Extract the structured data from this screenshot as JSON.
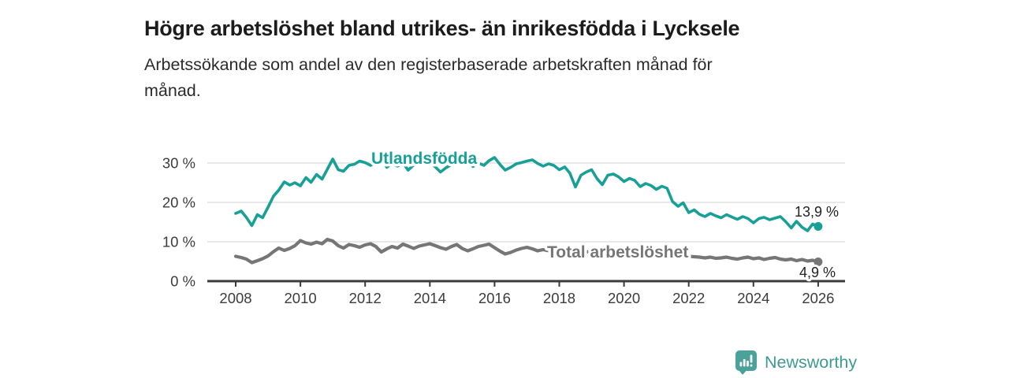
{
  "header": {
    "title": "Högre arbetslöshet bland utrikes- än inrikesfödda i Lycksele",
    "subtitle_line1": "Arbetssökande som andel av den registerbaserade arbetskraften månad för",
    "subtitle_line2": "månad."
  },
  "chart_data": {
    "type": "line",
    "title": "Högre arbetslöshet bland utrikes- än inrikesfödda i Lycksele",
    "xlabel": "",
    "ylabel": "Arbetssökande som andel av den registerbaserade arbetskraften (%)",
    "unit": "%",
    "xlim": [
      2008,
      2026
    ],
    "ylim": [
      0,
      35
    ],
    "grid": true,
    "legend_position": "inline",
    "x_ticks": [
      2008,
      2010,
      2012,
      2014,
      2016,
      2018,
      2020,
      2022,
      2024,
      2026
    ],
    "y_ticks": [
      0,
      10,
      20,
      30
    ],
    "y_tick_suffix": " %",
    "grid_color": "#d9d9d9",
    "axis_color": "#3b3b3b",
    "series": [
      {
        "name": "Utlandsfödda",
        "color": "#18A096",
        "end_label": "13,9 %",
        "end_value": 13.9,
        "points": [
          [
            2008.0,
            17.2
          ],
          [
            2008.17,
            17.8
          ],
          [
            2008.33,
            16.2
          ],
          [
            2008.5,
            14.1
          ],
          [
            2008.67,
            16.9
          ],
          [
            2008.83,
            16.1
          ],
          [
            2009.0,
            18.8
          ],
          [
            2009.17,
            21.6
          ],
          [
            2009.33,
            23.1
          ],
          [
            2009.5,
            25.2
          ],
          [
            2009.67,
            24.4
          ],
          [
            2009.83,
            25.0
          ],
          [
            2010.0,
            24.2
          ],
          [
            2010.17,
            26.3
          ],
          [
            2010.33,
            25.1
          ],
          [
            2010.5,
            27.1
          ],
          [
            2010.67,
            25.9
          ],
          [
            2010.83,
            28.4
          ],
          [
            2011.0,
            31.0
          ],
          [
            2011.17,
            28.3
          ],
          [
            2011.33,
            27.9
          ],
          [
            2011.5,
            29.4
          ],
          [
            2011.67,
            29.7
          ],
          [
            2011.83,
            30.5
          ],
          [
            2012.0,
            30.1
          ],
          [
            2012.17,
            29.4
          ],
          [
            2012.33,
            30.2
          ],
          [
            2012.5,
            31.4
          ],
          [
            2012.67,
            28.9
          ],
          [
            2012.83,
            29.8
          ],
          [
            2013.0,
            29.2
          ],
          [
            2013.17,
            30.0
          ],
          [
            2013.33,
            28.2
          ],
          [
            2013.5,
            29.5
          ],
          [
            2013.67,
            30.3
          ],
          [
            2013.83,
            29.7
          ],
          [
            2014.0,
            30.1
          ],
          [
            2014.17,
            29.0
          ],
          [
            2014.33,
            27.7
          ],
          [
            2014.5,
            28.8
          ],
          [
            2014.67,
            29.6
          ],
          [
            2014.83,
            30.2
          ],
          [
            2015.0,
            29.5
          ],
          [
            2015.17,
            30.4
          ],
          [
            2015.33,
            29.1
          ],
          [
            2015.5,
            30.0
          ],
          [
            2015.67,
            29.4
          ],
          [
            2015.83,
            30.6
          ],
          [
            2016.0,
            31.4
          ],
          [
            2016.17,
            29.6
          ],
          [
            2016.33,
            28.2
          ],
          [
            2016.5,
            28.9
          ],
          [
            2016.67,
            29.8
          ],
          [
            2016.83,
            30.1
          ],
          [
            2017.0,
            30.5
          ],
          [
            2017.17,
            30.8
          ],
          [
            2017.33,
            29.9
          ],
          [
            2017.5,
            29.2
          ],
          [
            2017.67,
            29.8
          ],
          [
            2017.83,
            29.4
          ],
          [
            2018.0,
            28.3
          ],
          [
            2018.17,
            29.0
          ],
          [
            2018.33,
            27.4
          ],
          [
            2018.5,
            23.9
          ],
          [
            2018.67,
            26.9
          ],
          [
            2018.83,
            27.7
          ],
          [
            2019.0,
            28.3
          ],
          [
            2019.17,
            26.0
          ],
          [
            2019.33,
            24.5
          ],
          [
            2019.5,
            26.9
          ],
          [
            2019.67,
            27.2
          ],
          [
            2019.83,
            26.5
          ],
          [
            2020.0,
            25.3
          ],
          [
            2020.17,
            26.1
          ],
          [
            2020.33,
            25.6
          ],
          [
            2020.5,
            24.0
          ],
          [
            2020.67,
            24.8
          ],
          [
            2020.83,
            24.3
          ],
          [
            2021.0,
            23.3
          ],
          [
            2021.17,
            24.1
          ],
          [
            2021.33,
            23.6
          ],
          [
            2021.5,
            20.2
          ],
          [
            2021.67,
            19.0
          ],
          [
            2021.83,
            19.9
          ],
          [
            2022.0,
            17.4
          ],
          [
            2022.17,
            18.1
          ],
          [
            2022.33,
            17.0
          ],
          [
            2022.5,
            16.4
          ],
          [
            2022.67,
            17.2
          ],
          [
            2022.83,
            16.6
          ],
          [
            2023.0,
            16.1
          ],
          [
            2023.17,
            16.9
          ],
          [
            2023.33,
            16.3
          ],
          [
            2023.5,
            15.7
          ],
          [
            2023.67,
            16.4
          ],
          [
            2023.83,
            15.9
          ],
          [
            2024.0,
            14.8
          ],
          [
            2024.17,
            15.9
          ],
          [
            2024.33,
            16.2
          ],
          [
            2024.5,
            15.6
          ],
          [
            2024.67,
            16.0
          ],
          [
            2024.83,
            16.4
          ],
          [
            2025.0,
            15.1
          ],
          [
            2025.17,
            13.5
          ],
          [
            2025.33,
            15.2
          ],
          [
            2025.5,
            13.7
          ],
          [
            2025.67,
            12.8
          ],
          [
            2025.83,
            14.5
          ],
          [
            2026.0,
            13.9
          ]
        ]
      },
      {
        "name": "Total arbetslöshet",
        "color": "#767676",
        "end_label": "4,9 %",
        "end_value": 4.9,
        "points": [
          [
            2008.0,
            6.3
          ],
          [
            2008.17,
            6.0
          ],
          [
            2008.33,
            5.6
          ],
          [
            2008.5,
            4.7
          ],
          [
            2008.67,
            5.2
          ],
          [
            2008.83,
            5.7
          ],
          [
            2009.0,
            6.4
          ],
          [
            2009.17,
            7.5
          ],
          [
            2009.33,
            8.4
          ],
          [
            2009.5,
            7.8
          ],
          [
            2009.67,
            8.3
          ],
          [
            2009.83,
            9.0
          ],
          [
            2010.0,
            10.3
          ],
          [
            2010.17,
            9.7
          ],
          [
            2010.33,
            9.4
          ],
          [
            2010.5,
            9.9
          ],
          [
            2010.67,
            9.5
          ],
          [
            2010.83,
            10.6
          ],
          [
            2011.0,
            10.2
          ],
          [
            2011.17,
            9.0
          ],
          [
            2011.33,
            8.4
          ],
          [
            2011.5,
            9.3
          ],
          [
            2011.67,
            9.0
          ],
          [
            2011.83,
            8.6
          ],
          [
            2012.0,
            9.2
          ],
          [
            2012.17,
            9.5
          ],
          [
            2012.33,
            8.8
          ],
          [
            2012.5,
            7.4
          ],
          [
            2012.67,
            8.2
          ],
          [
            2012.83,
            8.8
          ],
          [
            2013.0,
            8.4
          ],
          [
            2013.17,
            9.4
          ],
          [
            2013.33,
            8.9
          ],
          [
            2013.5,
            8.3
          ],
          [
            2013.67,
            8.9
          ],
          [
            2013.83,
            9.2
          ],
          [
            2014.0,
            9.5
          ],
          [
            2014.17,
            9.0
          ],
          [
            2014.33,
            8.5
          ],
          [
            2014.5,
            8.1
          ],
          [
            2014.67,
            8.8
          ],
          [
            2014.83,
            9.3
          ],
          [
            2015.0,
            8.3
          ],
          [
            2015.17,
            7.7
          ],
          [
            2015.33,
            8.2
          ],
          [
            2015.5,
            8.8
          ],
          [
            2015.67,
            9.1
          ],
          [
            2015.83,
            9.4
          ],
          [
            2016.0,
            8.5
          ],
          [
            2016.17,
            7.6
          ],
          [
            2016.33,
            6.9
          ],
          [
            2016.5,
            7.3
          ],
          [
            2016.67,
            7.9
          ],
          [
            2016.83,
            8.3
          ],
          [
            2017.0,
            8.6
          ],
          [
            2017.17,
            8.2
          ],
          [
            2017.33,
            7.7
          ],
          [
            2017.5,
            8.0
          ],
          [
            2017.67,
            7.7
          ],
          [
            2017.83,
            7.9
          ],
          [
            2018.0,
            7.6
          ],
          [
            2018.17,
            7.4
          ],
          [
            2018.33,
            7.1
          ],
          [
            2018.5,
            6.9
          ],
          [
            2018.67,
            7.2
          ],
          [
            2018.83,
            7.4
          ],
          [
            2019.0,
            7.5
          ],
          [
            2019.17,
            7.2
          ],
          [
            2019.33,
            7.0
          ],
          [
            2019.5,
            6.8
          ],
          [
            2019.67,
            7.1
          ],
          [
            2019.83,
            7.3
          ],
          [
            2020.0,
            7.4
          ],
          [
            2020.17,
            7.6
          ],
          [
            2020.33,
            7.3
          ],
          [
            2020.5,
            7.1
          ],
          [
            2020.67,
            7.0
          ],
          [
            2020.83,
            6.9
          ],
          [
            2021.0,
            6.8
          ],
          [
            2021.17,
            6.7
          ],
          [
            2021.33,
            6.5
          ],
          [
            2021.5,
            6.4
          ],
          [
            2021.67,
            6.5
          ],
          [
            2021.83,
            6.4
          ],
          [
            2022.0,
            6.3
          ],
          [
            2022.17,
            6.2
          ],
          [
            2022.33,
            6.1
          ],
          [
            2022.5,
            5.9
          ],
          [
            2022.67,
            6.1
          ],
          [
            2022.83,
            5.8
          ],
          [
            2023.0,
            5.9
          ],
          [
            2023.17,
            6.1
          ],
          [
            2023.33,
            5.8
          ],
          [
            2023.5,
            5.6
          ],
          [
            2023.67,
            5.9
          ],
          [
            2023.83,
            6.1
          ],
          [
            2024.0,
            5.7
          ],
          [
            2024.17,
            5.9
          ],
          [
            2024.33,
            5.5
          ],
          [
            2024.5,
            5.8
          ],
          [
            2024.67,
            6.0
          ],
          [
            2024.83,
            5.6
          ],
          [
            2025.0,
            5.4
          ],
          [
            2025.17,
            5.6
          ],
          [
            2025.33,
            5.2
          ],
          [
            2025.5,
            5.5
          ],
          [
            2025.67,
            5.1
          ],
          [
            2025.83,
            5.3
          ],
          [
            2026.0,
            4.9
          ]
        ]
      }
    ]
  },
  "footer": {
    "brand": "Newsworthy",
    "brand_color": "#3E9B93",
    "icon_color": "#4BA29B"
  }
}
